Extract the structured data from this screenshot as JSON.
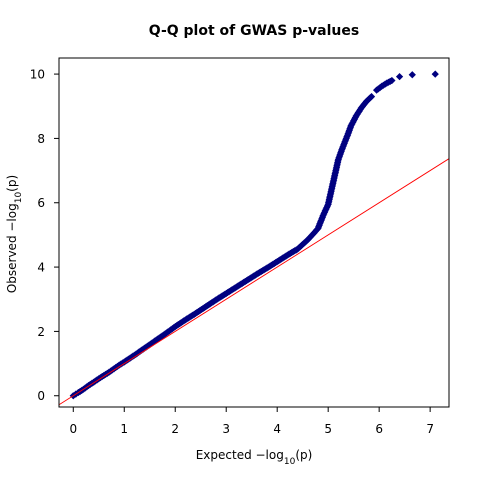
{
  "chart_data": {
    "type": "scatter",
    "title": "Q-Q plot of GWAS p-values",
    "xlabel": {
      "prefix": "Expected  −log",
      "sub": "10",
      "suffix": "(p)"
    },
    "ylabel": {
      "prefix": "Observed  −log",
      "sub": "10",
      "suffix": "(p)"
    },
    "xlim": [
      -0.28,
      7.37
    ],
    "ylim": [
      -0.35,
      10.5
    ],
    "xticks": [
      0,
      1,
      2,
      3,
      4,
      5,
      6,
      7
    ],
    "yticks": [
      0,
      2,
      4,
      6,
      8,
      10
    ],
    "grid": false,
    "reference_line": {
      "description": "y = x",
      "color": "#ff0000"
    },
    "point_color": "#000080",
    "series": [
      {
        "values_xy": [
          [
            0.0,
            0.0
          ],
          [
            0.05,
            0.05
          ],
          [
            0.1,
            0.1
          ],
          [
            0.2,
            0.2
          ],
          [
            0.3,
            0.32
          ],
          [
            0.4,
            0.42
          ],
          [
            0.5,
            0.53
          ],
          [
            0.6,
            0.63
          ],
          [
            0.7,
            0.73
          ],
          [
            0.8,
            0.84
          ],
          [
            0.9,
            0.95
          ],
          [
            1.0,
            1.05
          ],
          [
            1.2,
            1.26
          ],
          [
            1.4,
            1.48
          ],
          [
            1.6,
            1.7
          ],
          [
            1.8,
            1.92
          ],
          [
            2.0,
            2.15
          ],
          [
            2.2,
            2.36
          ],
          [
            2.4,
            2.56
          ],
          [
            2.6,
            2.77
          ],
          [
            2.8,
            2.98
          ],
          [
            3.0,
            3.18
          ],
          [
            3.2,
            3.38
          ],
          [
            3.4,
            3.58
          ],
          [
            3.6,
            3.78
          ],
          [
            3.8,
            3.97
          ],
          [
            4.0,
            4.17
          ],
          [
            4.2,
            4.37
          ],
          [
            4.4,
            4.56
          ],
          [
            4.6,
            4.85
          ],
          [
            4.7,
            5.02
          ],
          [
            4.8,
            5.2
          ],
          [
            4.85,
            5.4
          ],
          [
            4.9,
            5.6
          ],
          [
            5.0,
            5.95
          ],
          [
            5.05,
            6.3
          ],
          [
            5.1,
            6.65
          ],
          [
            5.15,
            7.0
          ],
          [
            5.2,
            7.35
          ],
          [
            5.28,
            7.7
          ],
          [
            5.38,
            8.1
          ],
          [
            5.45,
            8.4
          ],
          [
            5.55,
            8.7
          ],
          [
            5.65,
            8.95
          ],
          [
            5.75,
            9.15
          ],
          [
            5.85,
            9.3
          ],
          [
            5.95,
            9.5
          ],
          [
            6.05,
            9.62
          ],
          [
            6.15,
            9.72
          ],
          [
            6.25,
            9.8
          ],
          [
            6.4,
            9.92
          ],
          [
            6.65,
            9.98
          ],
          [
            7.1,
            10.0
          ]
        ]
      }
    ]
  }
}
